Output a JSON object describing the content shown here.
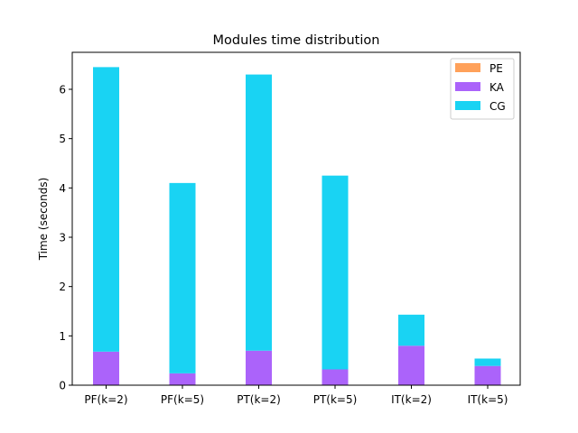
{
  "chart_data": {
    "type": "bar",
    "stacked": true,
    "title": "Modules time distribution",
    "xlabel": "",
    "ylabel": "Time (seconds)",
    "categories": [
      "PF(k=2)",
      "PF(k=5)",
      "PT(k=2)",
      "PT(k=5)",
      "IT(k=2)",
      "IT(k=5)"
    ],
    "series": [
      {
        "name": "PE",
        "color": "#ffa15a",
        "values": [
          0.0,
          0.0,
          0.0,
          0.0,
          0.0,
          0.0
        ]
      },
      {
        "name": "KA",
        "color": "#ab63fa",
        "values": [
          0.68,
          0.24,
          0.7,
          0.32,
          0.8,
          0.39
        ]
      },
      {
        "name": "CG",
        "color": "#19d3f3",
        "values": [
          5.77,
          3.86,
          5.6,
          3.93,
          0.63,
          0.15
        ]
      }
    ],
    "ylim": [
      0,
      6.75
    ],
    "yticks": [
      0,
      1,
      2,
      3,
      4,
      5,
      6
    ],
    "grid": false,
    "legend_position": "top-right"
  }
}
